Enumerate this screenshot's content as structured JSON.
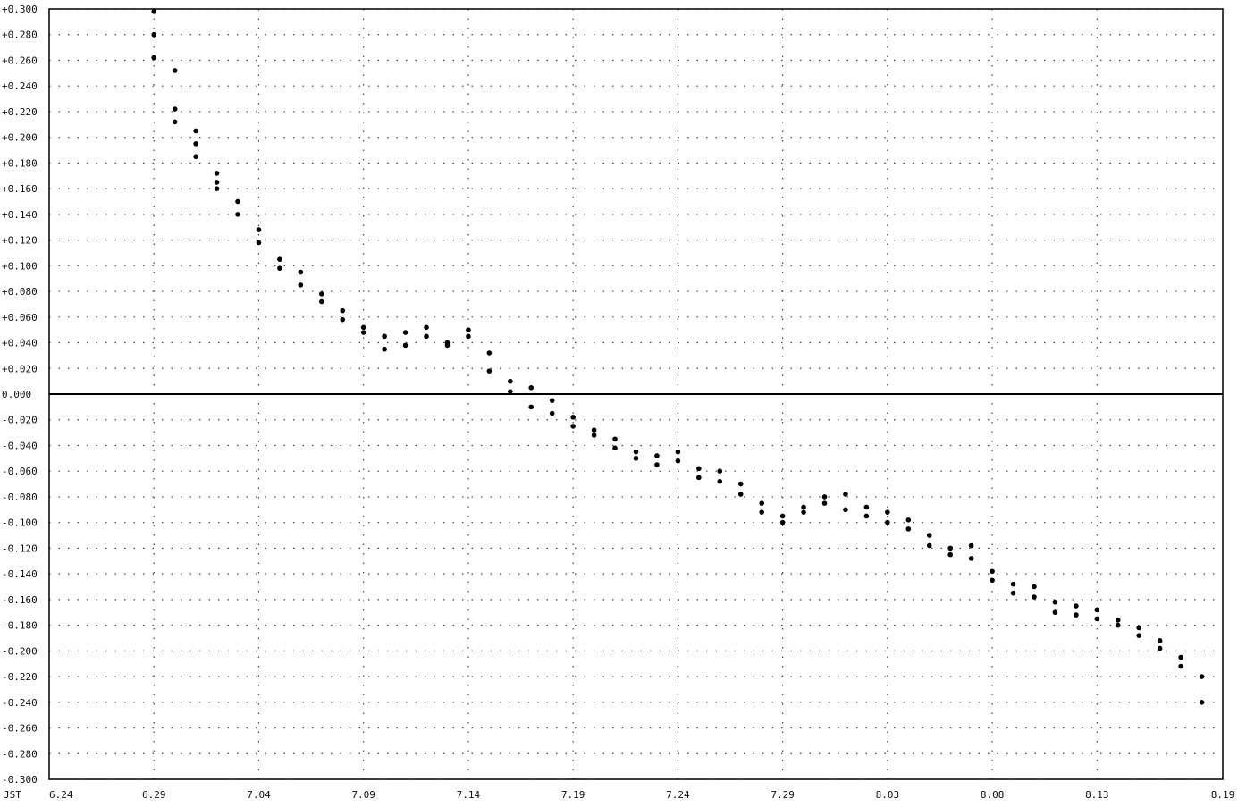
{
  "chart_data": {
    "type": "scatter",
    "title": "",
    "xlabel": "",
    "ylabel": "",
    "x_axis_prefix": "JST",
    "x_ticks": [
      "6.24",
      "6.29",
      "7.04",
      "7.09",
      "7.14",
      "7.19",
      "7.24",
      "7.29",
      "8.03",
      "8.08",
      "8.13",
      "8.19"
    ],
    "y_ticks": [
      "+0.300",
      "+0.280",
      "+0.260",
      "+0.240",
      "+0.220",
      "+0.200",
      "+0.180",
      "+0.160",
      "+0.140",
      "+0.120",
      "+0.100",
      "+0.080",
      "+0.060",
      "+0.040",
      "+0.020",
      "0.000",
      "-0.020",
      "-0.040",
      "-0.060",
      "-0.080",
      "-0.100",
      "-0.120",
      "-0.140",
      "-0.160",
      "-0.180",
      "-0.200",
      "-0.220",
      "-0.240",
      "-0.260",
      "-0.280",
      "-0.300"
    ],
    "xlim": [
      "2000-06-24",
      "2000-08-19"
    ],
    "ylim": [
      -0.3,
      0.3
    ],
    "grid": true,
    "grid_style": "dotted",
    "zero_line": true,
    "legend": "none",
    "colors": {
      "points": "#000000",
      "grid": "#444444",
      "axis": "#000000",
      "background": "#ffffff"
    },
    "series": [
      {
        "x": [
          "2000-06-29",
          "2000-06-29",
          "2000-06-29",
          "2000-06-30",
          "2000-06-30",
          "2000-06-30",
          "2000-07-01",
          "2000-07-01",
          "2000-07-01",
          "2000-07-02",
          "2000-07-02",
          "2000-07-02",
          "2000-07-03",
          "2000-07-03",
          "2000-07-04",
          "2000-07-04",
          "2000-07-05",
          "2000-07-05",
          "2000-07-06",
          "2000-07-06",
          "2000-07-07",
          "2000-07-07",
          "2000-07-08",
          "2000-07-08",
          "2000-07-09",
          "2000-07-09",
          "2000-07-10",
          "2000-07-10",
          "2000-07-11",
          "2000-07-11",
          "2000-07-12",
          "2000-07-12",
          "2000-07-13",
          "2000-07-13",
          "2000-07-14",
          "2000-07-14",
          "2000-07-15",
          "2000-07-15",
          "2000-07-16",
          "2000-07-16",
          "2000-07-17",
          "2000-07-17",
          "2000-07-18",
          "2000-07-18",
          "2000-07-19",
          "2000-07-19",
          "2000-07-20",
          "2000-07-20",
          "2000-07-21",
          "2000-07-21",
          "2000-07-22",
          "2000-07-22",
          "2000-07-23",
          "2000-07-23",
          "2000-07-24",
          "2000-07-24",
          "2000-07-25",
          "2000-07-25",
          "2000-07-26",
          "2000-07-26",
          "2000-07-27",
          "2000-07-27",
          "2000-07-28",
          "2000-07-28",
          "2000-07-29",
          "2000-07-29",
          "2000-07-30",
          "2000-07-30",
          "2000-07-31",
          "2000-07-31",
          "2000-08-01",
          "2000-08-01",
          "2000-08-02",
          "2000-08-02",
          "2000-08-03",
          "2000-08-03",
          "2000-08-04",
          "2000-08-04",
          "2000-08-05",
          "2000-08-05",
          "2000-08-06",
          "2000-08-06",
          "2000-08-07",
          "2000-08-07",
          "2000-08-08",
          "2000-08-08",
          "2000-08-09",
          "2000-08-09",
          "2000-08-10",
          "2000-08-10",
          "2000-08-11",
          "2000-08-11",
          "2000-08-12",
          "2000-08-12",
          "2000-08-13",
          "2000-08-13",
          "2000-08-14",
          "2000-08-14",
          "2000-08-15",
          "2000-08-15",
          "2000-08-16",
          "2000-08-16",
          "2000-08-17",
          "2000-08-17",
          "2000-08-18",
          "2000-08-18"
        ],
        "y": [
          0.298,
          0.28,
          0.262,
          0.252,
          0.222,
          0.212,
          0.205,
          0.195,
          0.185,
          0.172,
          0.165,
          0.16,
          0.15,
          0.14,
          0.128,
          0.118,
          0.105,
          0.098,
          0.095,
          0.085,
          0.078,
          0.072,
          0.065,
          0.058,
          0.052,
          0.048,
          0.045,
          0.035,
          0.048,
          0.038,
          0.052,
          0.045,
          0.04,
          0.038,
          0.045,
          0.05,
          0.032,
          0.018,
          0.01,
          0.002,
          0.005,
          -0.01,
          -0.005,
          -0.015,
          -0.018,
          -0.025,
          -0.028,
          -0.032,
          -0.035,
          -0.042,
          -0.045,
          -0.05,
          -0.048,
          -0.055,
          -0.045,
          -0.052,
          -0.058,
          -0.065,
          -0.06,
          -0.068,
          -0.07,
          -0.078,
          -0.085,
          -0.092,
          -0.095,
          -0.1,
          -0.088,
          -0.092,
          -0.08,
          -0.085,
          -0.078,
          -0.09,
          -0.095,
          -0.088,
          -0.092,
          -0.1,
          -0.105,
          -0.098,
          -0.11,
          -0.118,
          -0.12,
          -0.125,
          -0.118,
          -0.128,
          -0.138,
          -0.145,
          -0.148,
          -0.155,
          -0.15,
          -0.158,
          -0.162,
          -0.17,
          -0.172,
          -0.165,
          -0.168,
          -0.175,
          -0.18,
          -0.176,
          -0.182,
          -0.188,
          -0.192,
          -0.198,
          -0.205,
          -0.212,
          -0.22,
          -0.24
        ]
      }
    ]
  }
}
